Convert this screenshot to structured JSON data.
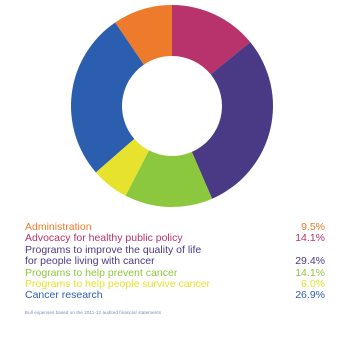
{
  "chart_data": {
    "type": "pie",
    "variant": "donut",
    "title": "",
    "slices": [
      {
        "label": "Administration",
        "value": 9.5,
        "display": "9.5%",
        "color": "#ee7a2c"
      },
      {
        "label": "Advocacy for healthy public policy",
        "value": 14.1,
        "display": "14.1%",
        "color": "#b8326b"
      },
      {
        "label": "Programs to improve the quality of life\nfor people living with cancer",
        "value": 29.4,
        "display": "29.4%",
        "color": "#4a3a86"
      },
      {
        "label": "Programs to help prevent cancer",
        "value": 14.1,
        "display": "14.1%",
        "color": "#8cc83e"
      },
      {
        "label": "Programs to help people survive cancer",
        "value": 6.0,
        "display": "6.0%",
        "color": "#e6e22e"
      },
      {
        "label": "Cancer research",
        "value": 26.9,
        "display": "26.9%",
        "color": "#2c5eb0"
      }
    ],
    "footnote": "Bull expenses based on the 2011-12 audited financial statements"
  }
}
